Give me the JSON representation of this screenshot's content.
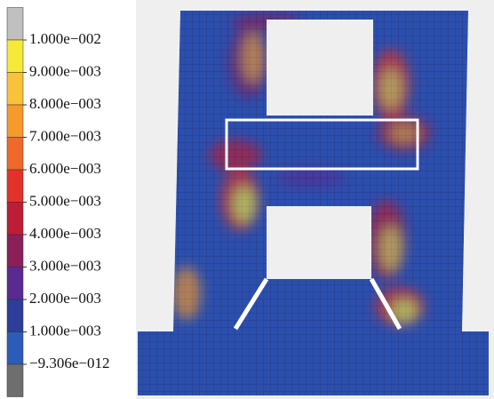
{
  "legend": {
    "labels": [
      "1.000e−002",
      "9.000e−003",
      "8.000e−003",
      "7.000e−003",
      "6.000e−003",
      "5.000e−003",
      "4.000e−003",
      "3.000e−003",
      "2.000e−003",
      "1.000e−003",
      "−9.306e−012"
    ],
    "colors": [
      "#c0c0c0",
      "#f5ea3a",
      "#f8c23a",
      "#f79a2c",
      "#ef6a2a",
      "#e2322a",
      "#bb1e36",
      "#8a1f5a",
      "#5a2a92",
      "#2e3c9a",
      "#2d5cb8",
      "#6e6e6e"
    ]
  }
}
